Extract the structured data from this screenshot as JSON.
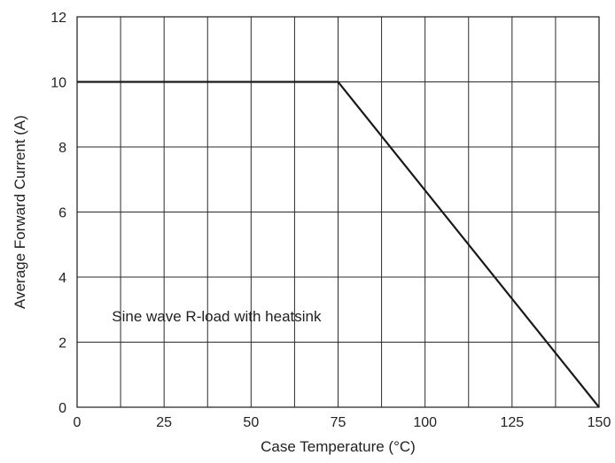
{
  "chart_data": {
    "type": "line",
    "xlabel": "Case Temperature (°C)",
    "ylabel": "Average Forward Current (A)",
    "xlim": [
      0,
      150
    ],
    "ylim": [
      0,
      12
    ],
    "x_ticks": [
      0,
      25,
      50,
      75,
      100,
      125,
      150
    ],
    "y_ticks": [
      0,
      2,
      4,
      6,
      8,
      10,
      12
    ],
    "x_gridlines": [
      0,
      12.5,
      25,
      37.5,
      50,
      62.5,
      75,
      87.5,
      100,
      112.5,
      125,
      137.5,
      150
    ],
    "y_gridlines": [
      0,
      2,
      4,
      6,
      8,
      10,
      12
    ],
    "grid": true,
    "series": [
      {
        "x": [
          0,
          75,
          150
        ],
        "y": [
          10,
          10,
          0
        ],
        "color": "#1a1a1a"
      }
    ],
    "annotations": [
      {
        "text": "Sine wave R-load with heatsink",
        "x": 10,
        "y": 2.8
      }
    ]
  }
}
